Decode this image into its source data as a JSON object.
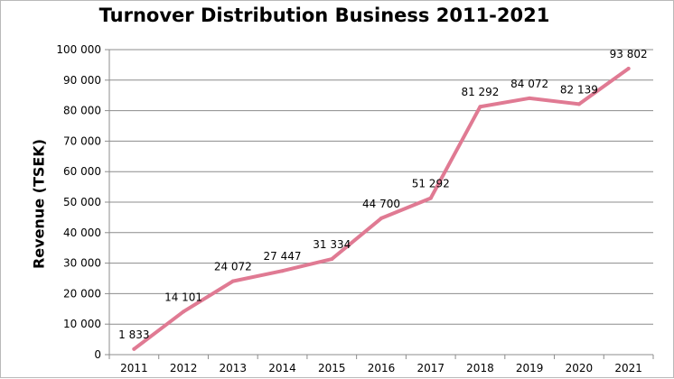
{
  "chart_data": {
    "type": "line",
    "title": "Turnover Distribution Business 2011-2021",
    "xlabel": "",
    "ylabel": "Revenue (TSEK)",
    "categories": [
      "2011",
      "2012",
      "2013",
      "2014",
      "2015",
      "2016",
      "2017",
      "2018",
      "2019",
      "2020",
      "2021"
    ],
    "values": [
      1833,
      14101,
      24072,
      27447,
      31334,
      44700,
      51292,
      81292,
      84072,
      82139,
      93802
    ],
    "data_labels": [
      "1 833",
      "14 101",
      "24 072",
      "27 447",
      "31 334",
      "44 700",
      "51 292",
      "81 292",
      "84 072",
      "82 139",
      "93 802"
    ],
    "y_ticks": [
      0,
      10000,
      20000,
      30000,
      40000,
      50000,
      60000,
      70000,
      80000,
      90000,
      100000
    ],
    "y_tick_labels": [
      "0",
      "10 000",
      "20 000",
      "30 000",
      "40 000",
      "50 000",
      "60 000",
      "70 000",
      "80 000",
      "90 000",
      "100 000"
    ],
    "ylim": [
      0,
      100000
    ],
    "grid": true,
    "legend": "none",
    "line_color": "#e07a93",
    "grid_color": "#8c8c8c"
  }
}
